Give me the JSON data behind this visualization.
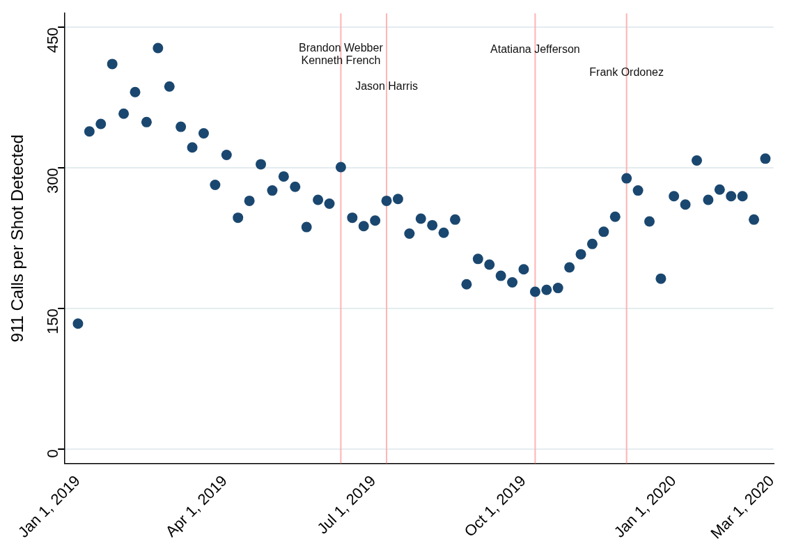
{
  "chart_data": {
    "type": "scatter",
    "ylabel": "911 Calls per Shot Detected",
    "x": [
      "2019-01-01",
      "2019-01-08",
      "2019-01-15",
      "2019-01-22",
      "2019-01-29",
      "2019-02-05",
      "2019-02-12",
      "2019-02-19",
      "2019-02-26",
      "2019-03-05",
      "2019-03-12",
      "2019-03-19",
      "2019-03-26",
      "2019-04-02",
      "2019-04-09",
      "2019-04-16",
      "2019-04-23",
      "2019-04-30",
      "2019-05-07",
      "2019-05-14",
      "2019-05-21",
      "2019-05-28",
      "2019-06-04",
      "2019-06-11",
      "2019-06-18",
      "2019-06-25",
      "2019-07-02",
      "2019-07-09",
      "2019-07-16",
      "2019-07-23",
      "2019-07-30",
      "2019-08-06",
      "2019-08-13",
      "2019-08-20",
      "2019-08-27",
      "2019-09-03",
      "2019-09-10",
      "2019-09-17",
      "2019-09-24",
      "2019-10-01",
      "2019-10-08",
      "2019-10-15",
      "2019-10-22",
      "2019-10-29",
      "2019-11-05",
      "2019-11-12",
      "2019-11-19",
      "2019-11-26",
      "2019-12-03",
      "2019-12-10",
      "2019-12-17",
      "2019-12-24",
      "2020-01-01",
      "2020-01-08",
      "2020-01-15",
      "2020-01-22",
      "2020-01-29",
      "2020-02-05",
      "2020-02-12",
      "2020-02-19",
      "2020-02-26"
    ],
    "series": [
      {
        "color": "#1a476f",
        "values": [
          134,
          339,
          347,
          411,
          358,
          381,
          349,
          428,
          387,
          344,
          322,
          337,
          282,
          314,
          247,
          265,
          304,
          276,
          291,
          280,
          237,
          266,
          262,
          301,
          247,
          238,
          244,
          265,
          267,
          230,
          246,
          239,
          231,
          245,
          176,
          203,
          197,
          185,
          178,
          192,
          168,
          170,
          172,
          194,
          208,
          219,
          232,
          248,
          289,
          276,
          243,
          182,
          270,
          261,
          308,
          266,
          277,
          270,
          270,
          245,
          310
        ]
      }
    ],
    "marker": "circle",
    "grid": "y",
    "legend": false,
    "xlim": [
      "2018-12-24",
      "2020-03-02"
    ],
    "xticks": [
      {
        "value": "2019-01-01",
        "label": "Jan 1, 2019"
      },
      {
        "value": "2019-04-01",
        "label": "Apr 1, 2019"
      },
      {
        "value": "2019-07-01",
        "label": "Jul 1, 2019"
      },
      {
        "value": "2019-10-01",
        "label": "Oct 1, 2019"
      },
      {
        "value": "2020-01-01",
        "label": "Jan 1, 2020"
      },
      {
        "value": "2020-03-01",
        "label": "Mar 1, 2020"
      }
    ],
    "ylim": [
      -15,
      465
    ],
    "yticks": [
      0,
      150,
      300,
      450
    ],
    "ref_lines": [
      {
        "axis": "x",
        "value": "2019-06-11",
        "label": "Brandon Webber\nKenneth French",
        "color": "#ffb3b3"
      },
      {
        "axis": "x",
        "value": "2019-07-09",
        "label": "Jason Harris",
        "color": "#ffb3b3"
      },
      {
        "axis": "x",
        "value": "2019-10-08",
        "label": "Atatiana Jefferson",
        "color": "#ffb3b3"
      },
      {
        "axis": "x",
        "value": "2019-12-03",
        "label": "Frank Ordonez",
        "color": "#ffb3b3"
      }
    ]
  }
}
